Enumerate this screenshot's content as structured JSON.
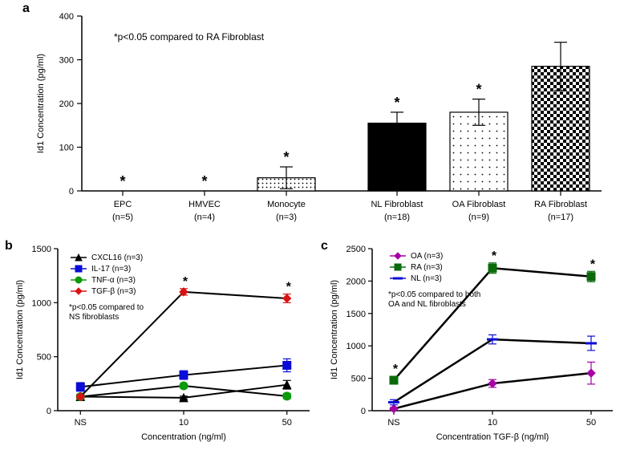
{
  "panelA": {
    "label": "a",
    "type": "bar",
    "annotation": "*p<0.05 compared to RA Fibroblast",
    "annotation_fontsize": 12,
    "ylabel": "Id1 Concentration (pg/ml)",
    "ylabel_fontsize": 12,
    "ylim": [
      0,
      400
    ],
    "ytick_step": 100,
    "categories": [
      {
        "name": "EPC",
        "n": "(n=5)",
        "value": 0,
        "err": 0,
        "star": true,
        "fill": "#ffffff",
        "pattern": "none"
      },
      {
        "name": "HMVEC",
        "n": "(n=4)",
        "value": 0,
        "err": 0,
        "star": true,
        "fill": "#ffffff",
        "pattern": "none"
      },
      {
        "name": "Monocyte",
        "n": "(n=3)",
        "value": 30,
        "err": 25,
        "star": true,
        "fill": "#cccccc",
        "pattern": "dots-light"
      },
      {
        "name": "NL Fibroblast",
        "n": "(n=18)",
        "value": 155,
        "err": 25,
        "star": true,
        "fill": "#000000",
        "pattern": "solid"
      },
      {
        "name": "OA Fibroblast",
        "n": "(n=9)",
        "value": 180,
        "err": 30,
        "star": true,
        "fill": "#ffffff",
        "pattern": "dots-sparse"
      },
      {
        "name": "RA Fibroblast",
        "n": "(n=17)",
        "value": 285,
        "err": 55,
        "star": false,
        "fill": "#ffffff",
        "pattern": "checker"
      }
    ],
    "bar_stroke": "#000000",
    "bar_stroke_width": 1.2,
    "axis_fontsize": 11,
    "tick_fontsize": 11,
    "background": "#ffffff"
  },
  "panelB": {
    "label": "b",
    "type": "line",
    "ylabel": "Id1 Concentration (pg/ml)",
    "xlabel": "Concentration (ng/ml)",
    "annotation": "*p<0.05 compared to\nNS fibroblasts",
    "annotation_fontsize": 10,
    "xcats": [
      "NS",
      "10",
      "50"
    ],
    "ylim": [
      0,
      1500
    ],
    "ytick_step": 500,
    "line_width": 2,
    "marker_size": 5,
    "legend": [
      {
        "name": "CXCL16 (n=3)",
        "color": "#000000",
        "marker": "triangle"
      },
      {
        "name": "IL-17 (n=3)",
        "color": "#0b0bd6",
        "marker": "square"
      },
      {
        "name": "TNF-α (n=3)",
        "color": "#0a9a0a",
        "marker": "circle"
      },
      {
        "name": "TGF-β (n=3)",
        "color": "#d91212",
        "marker": "diamond"
      }
    ],
    "series": {
      "CXCL16": {
        "values": [
          130,
          120,
          240
        ],
        "err": [
          20,
          15,
          40
        ],
        "star": [
          false,
          false,
          false
        ],
        "color": "#000000",
        "marker": "triangle"
      },
      "IL17": {
        "values": [
          220,
          330,
          420
        ],
        "err": [
          40,
          40,
          60
        ],
        "star": [
          false,
          false,
          false
        ],
        "color": "#0b0bd6",
        "marker": "square"
      },
      "TNFa": {
        "values": [
          130,
          230,
          135
        ],
        "err": [
          15,
          20,
          25
        ],
        "star": [
          false,
          false,
          false
        ],
        "color": "#0a9a0a",
        "marker": "circle"
      },
      "TGFb": {
        "values": [
          130,
          1100,
          1040
        ],
        "err": [
          20,
          30,
          40
        ],
        "star": [
          false,
          true,
          true
        ],
        "color": "#d91212",
        "marker": "diamond"
      }
    },
    "axis_fontsize": 11,
    "tick_fontsize": 11
  },
  "panelC": {
    "label": "c",
    "type": "line",
    "ylabel": "Id1 Concentration (pg/ml)",
    "xlabel": "Concentration TGF-β (ng/ml)",
    "annotation": "*p<0.05 compared to both\nOA and NL fibroblasts",
    "annotation_fontsize": 10,
    "xcats": [
      "NS",
      "10",
      "50"
    ],
    "ylim": [
      0,
      2500
    ],
    "ytick_step": 500,
    "line_width": 2.5,
    "marker_size": 5,
    "legend": [
      {
        "name": "OA (n=3)",
        "color": "#a500a5",
        "marker": "diamond"
      },
      {
        "name": "RA (n=3)",
        "color": "#0a6a0a",
        "marker": "square"
      },
      {
        "name": "NL (n=3)",
        "color": "#0b0bd6",
        "marker": "hline"
      }
    ],
    "series": {
      "OA": {
        "values": [
          30,
          420,
          580
        ],
        "err": [
          20,
          60,
          170
        ],
        "star": [
          false,
          false,
          false
        ],
        "color": "#a500a5",
        "marker": "diamond"
      },
      "RA": {
        "values": [
          470,
          2200,
          2070
        ],
        "err": [
          60,
          80,
          80
        ],
        "star": [
          true,
          true,
          true
        ],
        "color": "#0a6a0a",
        "marker": "square"
      },
      "NL": {
        "values": [
          130,
          1100,
          1040
        ],
        "err": [
          40,
          70,
          110
        ],
        "star": [
          false,
          false,
          false
        ],
        "color": "#0b0bd6",
        "marker": "hline"
      }
    },
    "axis_fontsize": 11,
    "tick_fontsize": 11
  }
}
